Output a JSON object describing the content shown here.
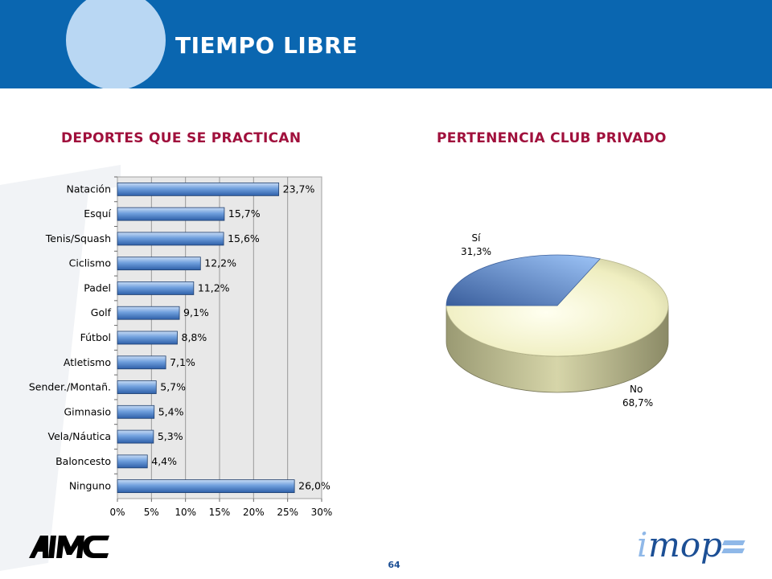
{
  "header": {
    "title": "TIEMPO LIBRE"
  },
  "footer": {
    "page_number": "64",
    "logo_left": "AIMC",
    "logo_right": "imop"
  },
  "colors": {
    "header": "#0a66b0",
    "title_red": "#a0103c",
    "bar": "#5b8fd4",
    "pie_si": "#7fa9e6",
    "pie_no": "#f1f0c2"
  },
  "chart_data": [
    {
      "type": "bar",
      "orientation": "horizontal",
      "title": "DEPORTES QUE SE PRACTICAN",
      "categories": [
        "Natación",
        "Esquí",
        "Tenis/Squash",
        "Ciclismo",
        "Padel",
        "Golf",
        "Fútbol",
        "Atletismo",
        "Sender./Montañ.",
        "Gimnasio",
        "Vela/Náutica",
        "Baloncesto",
        "Ninguno"
      ],
      "values": [
        23.7,
        15.7,
        15.6,
        12.2,
        11.2,
        9.1,
        8.8,
        7.1,
        5.7,
        5.4,
        5.3,
        4.4,
        26.0
      ],
      "data_labels": [
        "23,7%",
        "15,7%",
        "15,6%",
        "12,2%",
        "11,2%",
        "9,1%",
        "8,8%",
        "7,1%",
        "5,7%",
        "5,4%",
        "5,3%",
        "4,4%",
        "26,0%"
      ],
      "xlim": [
        0,
        30
      ],
      "ticks": [
        "0%",
        "5%",
        "10%",
        "15%",
        "20%",
        "25%",
        "30%"
      ],
      "grid": true
    },
    {
      "type": "pie",
      "title": "PERTENENCIA CLUB PRIVADO",
      "slices": [
        {
          "name": "Sí",
          "value": 31.3,
          "label": "31,3%"
        },
        {
          "name": "No",
          "value": 68.7,
          "label": "68,7%"
        }
      ]
    }
  ]
}
